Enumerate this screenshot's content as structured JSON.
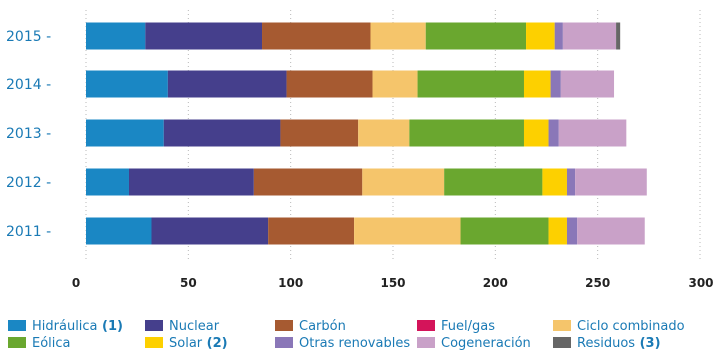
{
  "chart_data": {
    "type": "bar",
    "orientation": "horizontal",
    "stacked": true,
    "categories": [
      "2015",
      "2014",
      "2013",
      "2012",
      "2011"
    ],
    "xlim": [
      0,
      300
    ],
    "xticks": [
      0,
      50,
      100,
      150,
      200,
      250,
      300
    ],
    "grid": "vertical",
    "legend_position": "bottom",
    "series": [
      {
        "name": "Hidráulica",
        "note": "(1)",
        "color": "#1a87c4",
        "values": [
          29,
          40,
          38,
          21,
          32
        ]
      },
      {
        "name": "Nuclear",
        "note": "",
        "color": "#453f8c",
        "values": [
          57,
          58,
          57,
          61,
          57
        ]
      },
      {
        "name": "Carbón",
        "note": "",
        "color": "#a65a31",
        "values": [
          53,
          42,
          38,
          53,
          42
        ]
      },
      {
        "name": "Fuel/gas",
        "note": "",
        "color": "#d4145a",
        "values": [
          0,
          0,
          0,
          0,
          0
        ]
      },
      {
        "name": "Ciclo combinado",
        "note": "",
        "color": "#f5c56b",
        "values": [
          27,
          22,
          25,
          40,
          52
        ]
      },
      {
        "name": "Eólica",
        "note": "",
        "color": "#6aa72f",
        "values": [
          49,
          52,
          56,
          48,
          43
        ]
      },
      {
        "name": "Solar",
        "note": "(2)",
        "color": "#fdd000",
        "values": [
          14,
          13,
          12,
          12,
          9
        ]
      },
      {
        "name": "Otras renovables",
        "note": "",
        "color": "#8a77b8",
        "values": [
          4,
          5,
          5,
          4,
          5
        ]
      },
      {
        "name": "Cogeneración",
        "note": "",
        "color": "#c9a1c8",
        "values": [
          26,
          26,
          33,
          35,
          33
        ]
      },
      {
        "name": "Residuos",
        "note": "(3)",
        "color": "#666666",
        "values": [
          2,
          0,
          0,
          0,
          0
        ]
      }
    ]
  }
}
